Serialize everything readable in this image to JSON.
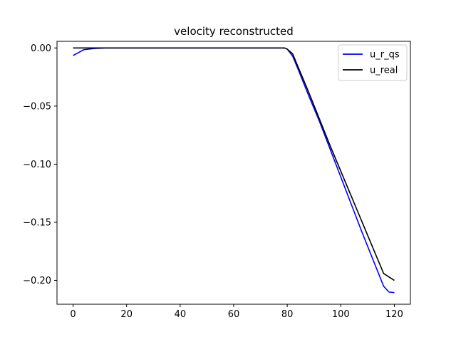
{
  "chart_data": {
    "type": "line",
    "title": "velocity reconstructed",
    "xlabel": "",
    "ylabel": "",
    "xlim": [
      -6,
      126
    ],
    "ylim": [
      -0.2205,
      0.0057
    ],
    "xticks": [
      0,
      20,
      40,
      60,
      80,
      100,
      120
    ],
    "xtick_labels": [
      "0",
      "20",
      "40",
      "60",
      "80",
      "100",
      "120"
    ],
    "yticks": [
      0.0,
      -0.05,
      -0.1,
      -0.15,
      -0.2
    ],
    "ytick_labels": [
      "0.00",
      "−0.05",
      "−0.10",
      "−0.15",
      "−0.20"
    ],
    "grid": false,
    "legend_position": "top-right",
    "series": [
      {
        "name": "u_r_qs",
        "color": "#0000ff",
        "x": [
          0,
          4,
          8,
          12,
          20,
          40,
          60,
          79,
          80,
          82,
          84,
          88,
          92,
          96,
          100,
          104,
          108,
          112,
          116,
          118,
          120
        ],
        "y": [
          -0.0065,
          -0.0015,
          -0.0005,
          0.0,
          0.0,
          0.0,
          0.0,
          0.0,
          -0.001,
          -0.007,
          -0.018,
          -0.041,
          -0.063,
          -0.087,
          -0.111,
          -0.135,
          -0.159,
          -0.182,
          -0.205,
          -0.21,
          -0.2105
        ]
      },
      {
        "name": "u_real",
        "color": "#000000",
        "x": [
          0,
          10,
          20,
          40,
          60,
          79,
          80,
          82,
          84,
          88,
          92,
          96,
          100,
          104,
          108,
          112,
          116,
          120
        ],
        "y": [
          0.0,
          0.0,
          0.0,
          0.0,
          0.0,
          0.0,
          -0.001,
          -0.005,
          -0.016,
          -0.038,
          -0.061,
          -0.084,
          -0.106,
          -0.128,
          -0.15,
          -0.172,
          -0.194,
          -0.2
        ]
      }
    ]
  }
}
